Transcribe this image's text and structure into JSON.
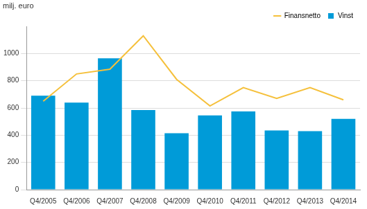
{
  "chart_data": {
    "type": "bar",
    "ylabel": "milj. euro",
    "categories": [
      "Q4/2005",
      "Q4/2006",
      "Q4/2007",
      "Q4/2008",
      "Q4/2009",
      "Q4/2010",
      "Q4/2011",
      "Q4/2012",
      "Q4/2013",
      "Q4/2014"
    ],
    "series": [
      {
        "name": "Vinst",
        "type": "bar",
        "color": "#009bd8",
        "values": [
          690,
          640,
          965,
          585,
          415,
          545,
          575,
          435,
          430,
          520
        ]
      },
      {
        "name": "Finansnetto",
        "type": "line",
        "color": "#f5c03b",
        "values": [
          650,
          850,
          885,
          1130,
          810,
          615,
          750,
          670,
          750,
          660
        ]
      }
    ],
    "ylim": [
      0,
      1200
    ],
    "yticks": [
      0,
      200,
      400,
      600,
      800,
      1000
    ],
    "grid": true,
    "legend": "upper right"
  }
}
